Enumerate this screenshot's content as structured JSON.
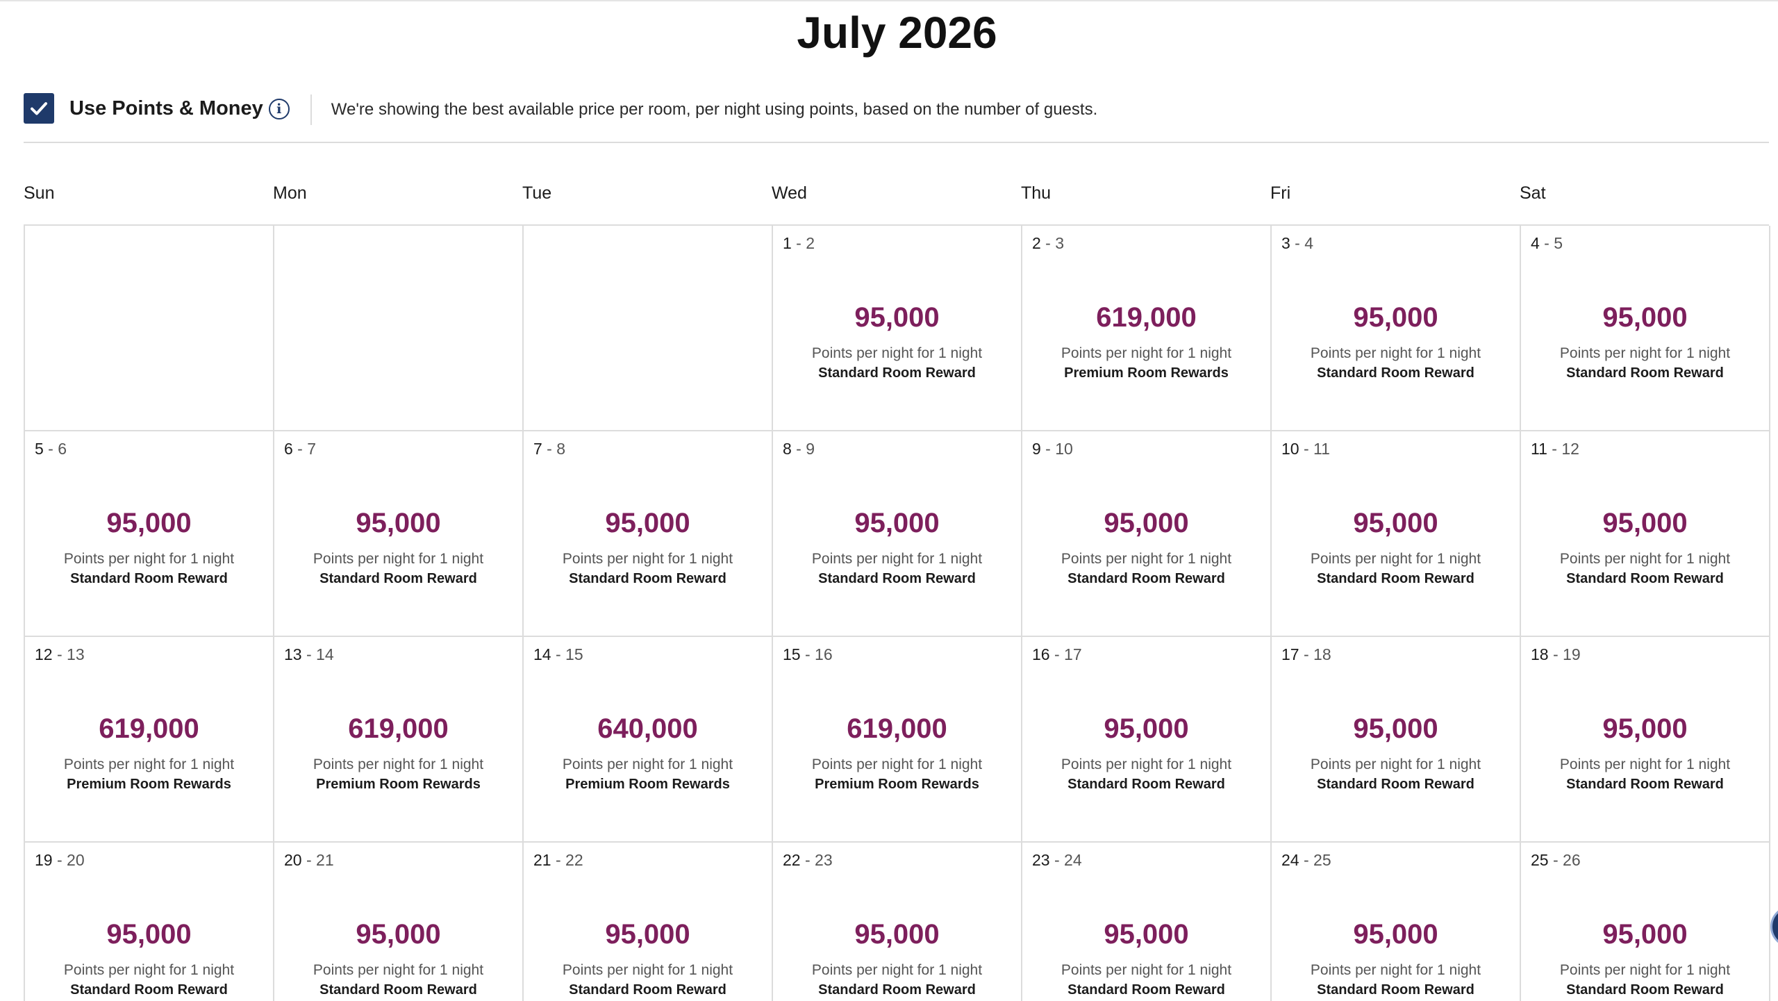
{
  "calendar": {
    "month_title": "July 2026"
  },
  "points_toggle": {
    "checked": true,
    "label": "Use Points & Money",
    "info_icon": "info-icon",
    "description": "We're showing the best available price per room, per night using points, based on the number of guests."
  },
  "weekdays": [
    "Sun",
    "Mon",
    "Tue",
    "Wed",
    "Thu",
    "Fri",
    "Sat"
  ],
  "colors": {
    "price": "#7d1f5c",
    "checkbox": "#1f3a6a",
    "grid_border": "#dcdcdc"
  },
  "weeks": [
    [
      null,
      null,
      null,
      {
        "start": "1",
        "end": "2",
        "points": "95,000",
        "note": "Points per night for 1 night",
        "room": "Standard Room Reward"
      },
      {
        "start": "2",
        "end": "3",
        "points": "619,000",
        "note": "Points per night for 1 night",
        "room": "Premium Room Rewards"
      },
      {
        "start": "3",
        "end": "4",
        "points": "95,000",
        "note": "Points per night for 1 night",
        "room": "Standard Room Reward"
      },
      {
        "start": "4",
        "end": "5",
        "points": "95,000",
        "note": "Points per night for 1 night",
        "room": "Standard Room Reward"
      }
    ],
    [
      {
        "start": "5",
        "end": "6",
        "points": "95,000",
        "note": "Points per night for 1 night",
        "room": "Standard Room Reward"
      },
      {
        "start": "6",
        "end": "7",
        "points": "95,000",
        "note": "Points per night for 1 night",
        "room": "Standard Room Reward"
      },
      {
        "start": "7",
        "end": "8",
        "points": "95,000",
        "note": "Points per night for 1 night",
        "room": "Standard Room Reward"
      },
      {
        "start": "8",
        "end": "9",
        "points": "95,000",
        "note": "Points per night for 1 night",
        "room": "Standard Room Reward"
      },
      {
        "start": "9",
        "end": "10",
        "points": "95,000",
        "note": "Points per night for 1 night",
        "room": "Standard Room Reward"
      },
      {
        "start": "10",
        "end": "11",
        "points": "95,000",
        "note": "Points per night for 1 night",
        "room": "Standard Room Reward"
      },
      {
        "start": "11",
        "end": "12",
        "points": "95,000",
        "note": "Points per night for 1 night",
        "room": "Standard Room Reward"
      }
    ],
    [
      {
        "start": "12",
        "end": "13",
        "points": "619,000",
        "note": "Points per night for 1 night",
        "room": "Premium Room Rewards"
      },
      {
        "start": "13",
        "end": "14",
        "points": "619,000",
        "note": "Points per night for 1 night",
        "room": "Premium Room Rewards"
      },
      {
        "start": "14",
        "end": "15",
        "points": "640,000",
        "note": "Points per night for 1 night",
        "room": "Premium Room Rewards"
      },
      {
        "start": "15",
        "end": "16",
        "points": "619,000",
        "note": "Points per night for 1 night",
        "room": "Premium Room Rewards"
      },
      {
        "start": "16",
        "end": "17",
        "points": "95,000",
        "note": "Points per night for 1 night",
        "room": "Standard Room Reward"
      },
      {
        "start": "17",
        "end": "18",
        "points": "95,000",
        "note": "Points per night for 1 night",
        "room": "Standard Room Reward"
      },
      {
        "start": "18",
        "end": "19",
        "points": "95,000",
        "note": "Points per night for 1 night",
        "room": "Standard Room Reward"
      }
    ],
    [
      {
        "start": "19",
        "end": "20",
        "points": "95,000",
        "note": "Points per night for 1 night",
        "room": "Standard Room Reward"
      },
      {
        "start": "20",
        "end": "21",
        "points": "95,000",
        "note": "Points per night for 1 night",
        "room": "Standard Room Reward"
      },
      {
        "start": "21",
        "end": "22",
        "points": "95,000",
        "note": "Points per night for 1 night",
        "room": "Standard Room Reward"
      },
      {
        "start": "22",
        "end": "23",
        "points": "95,000",
        "note": "Points per night for 1 night",
        "room": "Standard Room Reward"
      },
      {
        "start": "23",
        "end": "24",
        "points": "95,000",
        "note": "Points per night for 1 night",
        "room": "Standard Room Reward"
      },
      {
        "start": "24",
        "end": "25",
        "points": "95,000",
        "note": "Points per night for 1 night",
        "room": "Standard Room Reward"
      },
      {
        "start": "25",
        "end": "26",
        "points": "95,000",
        "note": "Points per night for 1 night",
        "room": "Standard Room Reward"
      }
    ]
  ]
}
